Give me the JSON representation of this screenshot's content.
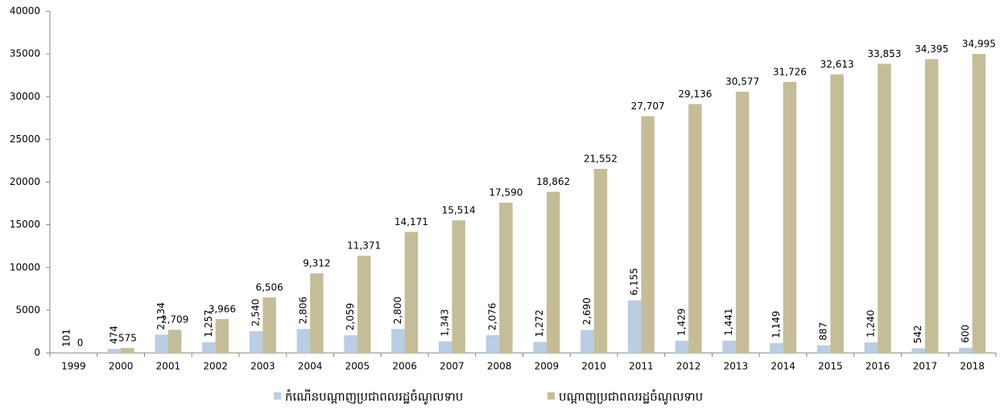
{
  "chart_data": {
    "type": "bar",
    "categories": [
      "1999",
      "2000",
      "2001",
      "2002",
      "2003",
      "2004",
      "2005",
      "2006",
      "2007",
      "2008",
      "2009",
      "2010",
      "2011",
      "2012",
      "2013",
      "2014",
      "2015",
      "2016",
      "2017",
      "2018"
    ],
    "series": [
      {
        "name": "កំណើនបណ្ដាញប្រជាពលរដ្ឋចំណូលទាប",
        "color": "#b9cde5",
        "values": [
          101,
          474,
          2134,
          1257,
          2540,
          2806,
          2059,
          2800,
          1343,
          2076,
          1272,
          2690,
          6155,
          1429,
          1441,
          1149,
          887,
          1240,
          542,
          600
        ],
        "value_labels": [
          "101",
          "474",
          "2,134",
          "1,257",
          "2,540",
          "2,806",
          "2,059",
          "2,800",
          "1,343",
          "2,076",
          "1,272",
          "2,690",
          "6,155",
          "1,429",
          "1,441",
          "1,149",
          "887",
          "1,240",
          "542",
          "600"
        ]
      },
      {
        "name": "បណ្ដាញប្រជាពលរដ្ឋចំណូលទាប",
        "color": "#c4bd97",
        "values": [
          0,
          575,
          2709,
          3966,
          6506,
          9312,
          11371,
          14171,
          15514,
          17590,
          18862,
          21552,
          27707,
          29136,
          30577,
          31726,
          32613,
          33853,
          34395,
          34995
        ],
        "value_labels": [
          "0",
          "575",
          "2,709",
          "3,966",
          "6,506",
          "9,312",
          "11,371",
          "14,171",
          "15,514",
          "17,590",
          "18,862",
          "21,552",
          "27,707",
          "29,136",
          "30,577",
          "31,726",
          "32,613",
          "33,853",
          "34,395",
          "34,995"
        ]
      }
    ],
    "ylim": [
      0,
      40000
    ],
    "yticks": [
      0,
      5000,
      10000,
      15000,
      20000,
      25000,
      30000,
      35000,
      40000
    ],
    "grid": false
  }
}
